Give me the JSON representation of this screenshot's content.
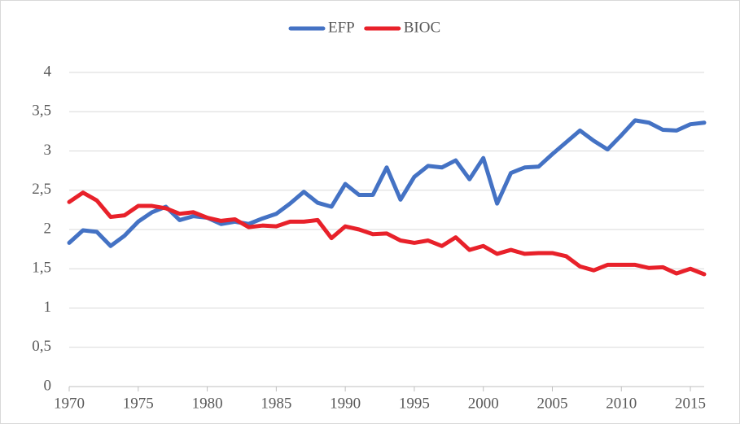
{
  "chart_data": {
    "type": "line",
    "x": [
      1970,
      1971,
      1972,
      1973,
      1974,
      1975,
      1976,
      1977,
      1978,
      1979,
      1980,
      1981,
      1982,
      1983,
      1984,
      1985,
      1986,
      1987,
      1988,
      1989,
      1990,
      1991,
      1992,
      1993,
      1994,
      1995,
      1996,
      1997,
      1998,
      1999,
      2000,
      2001,
      2002,
      2003,
      2004,
      2005,
      2006,
      2007,
      2008,
      2009,
      2010,
      2011,
      2012,
      2013,
      2014,
      2015,
      2016
    ],
    "series": [
      {
        "name": "EFP",
        "color": "#4472c4",
        "values": [
          1.83,
          1.99,
          1.97,
          1.79,
          1.92,
          2.1,
          2.22,
          2.29,
          2.12,
          2.17,
          2.15,
          2.07,
          2.1,
          2.07,
          2.14,
          2.2,
          2.33,
          2.48,
          2.34,
          2.29,
          2.58,
          2.44,
          2.44,
          2.79,
          2.38,
          2.67,
          2.81,
          2.79,
          2.88,
          2.64,
          2.91,
          2.33,
          2.72,
          2.79,
          2.8,
          2.96,
          3.11,
          3.26,
          3.13,
          3.02,
          3.2,
          3.39,
          3.36,
          3.27,
          3.26,
          3.34,
          3.36
        ]
      },
      {
        "name": "BIOC",
        "color": "#e8212a",
        "values": [
          2.35,
          2.47,
          2.37,
          2.16,
          2.18,
          2.3,
          2.3,
          2.27,
          2.2,
          2.22,
          2.15,
          2.11,
          2.13,
          2.03,
          2.05,
          2.04,
          2.1,
          2.1,
          2.12,
          1.89,
          2.04,
          2.0,
          1.94,
          1.95,
          1.86,
          1.83,
          1.86,
          1.79,
          1.9,
          1.74,
          1.79,
          1.69,
          1.74,
          1.69,
          1.7,
          1.7,
          1.66,
          1.53,
          1.48,
          1.55,
          1.55,
          1.55,
          1.51,
          1.52,
          1.44,
          1.5,
          1.43
        ]
      }
    ],
    "xlim": [
      1970,
      2016
    ],
    "xticks": [
      1970,
      1975,
      1980,
      1985,
      1990,
      1995,
      2000,
      2005,
      2010,
      2015
    ],
    "ylim": [
      0,
      4
    ],
    "yticks": [
      0,
      {
        "value": 0.5,
        "label": "0,5"
      },
      1,
      {
        "value": 1.5,
        "label": "1,5"
      },
      2,
      {
        "value": 2.5,
        "label": "2,5"
      },
      3,
      {
        "value": 3.5,
        "label": "3,5"
      },
      4
    ],
    "grid": true,
    "legend": "top"
  }
}
